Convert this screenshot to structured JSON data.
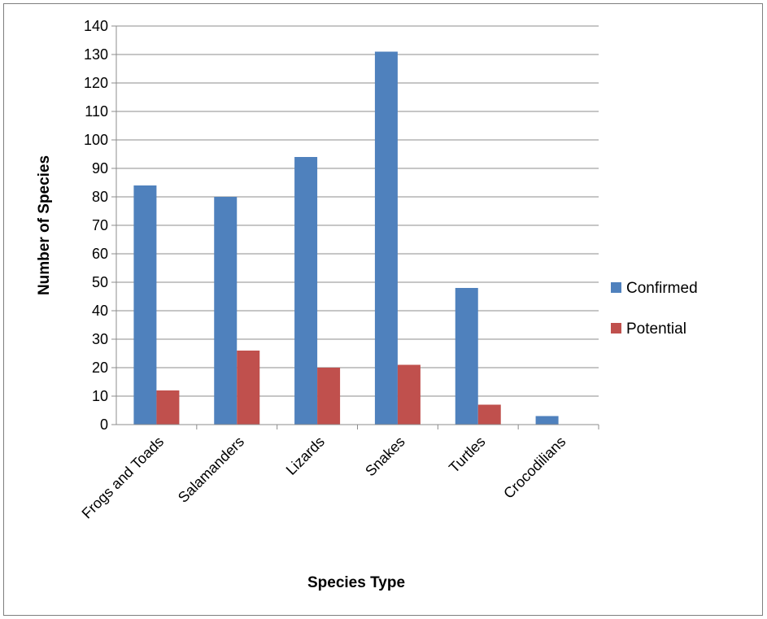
{
  "chart_data": {
    "type": "bar",
    "title": "",
    "xlabel": "Species Type",
    "ylabel": "Number of Species",
    "categories": [
      "Frogs and Toads",
      "Salamanders",
      "Lizards",
      "Snakes",
      "Turtles",
      "Crocodilians"
    ],
    "series": [
      {
        "name": "Confirmed",
        "values": [
          84,
          80,
          94,
          131,
          48,
          3
        ],
        "color": "#4f81bd"
      },
      {
        "name": "Potential",
        "values": [
          12,
          26,
          20,
          21,
          7,
          0
        ],
        "color": "#c0504d"
      }
    ],
    "ylim": [
      0,
      140
    ],
    "yticks": [
      "0",
      "10",
      "20",
      "30",
      "40",
      "50",
      "60",
      "70",
      "80",
      "90",
      "100",
      "110",
      "120",
      "130",
      "140"
    ],
    "grid": true,
    "legend_position": "right"
  }
}
